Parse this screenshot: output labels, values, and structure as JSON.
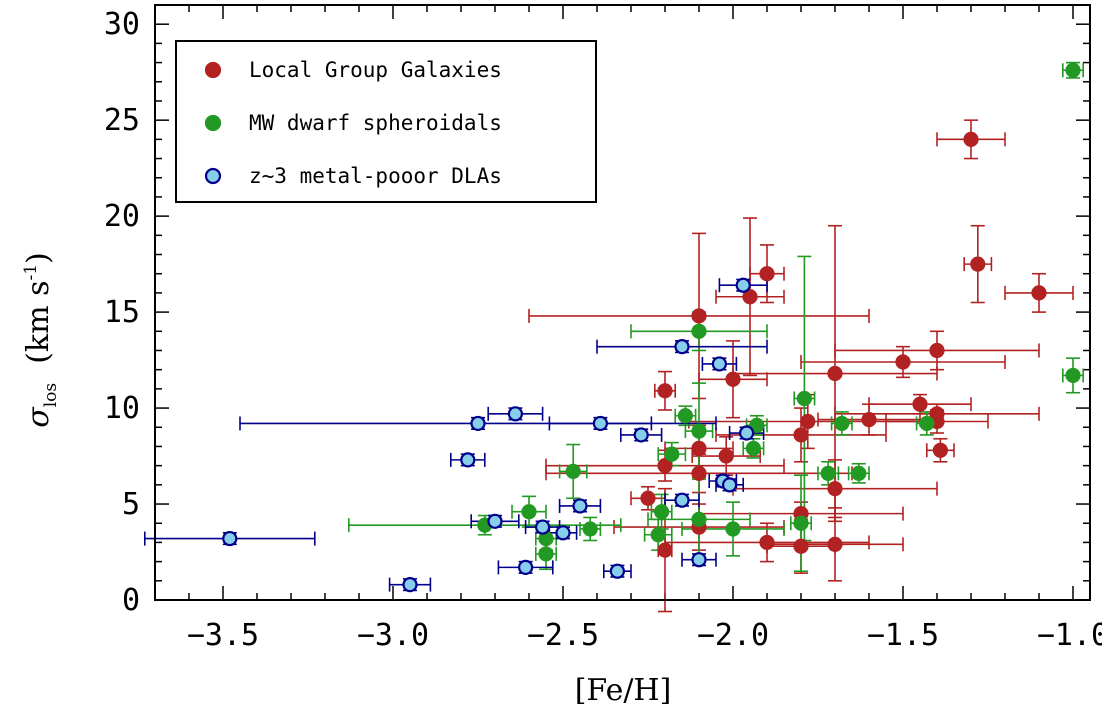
{
  "chart_data": {
    "type": "scatter",
    "xlabel": "[Fe/H]",
    "ylabel_symbol": "σ",
    "ylabel_subscript": "los",
    "ylabel_units": "(km s",
    "ylabel_exponent": "-1",
    "ylabel_close": ")",
    "xlim": [
      -3.7,
      -0.95
    ],
    "ylim": [
      0,
      31
    ],
    "xticks": [
      -3.5,
      -3.0,
      -2.5,
      -2.0,
      -1.5,
      -1.0
    ],
    "xtick_labels": [
      "−3.5",
      "−3.0",
      "−2.5",
      "−2.0",
      "−1.5",
      "−1.0"
    ],
    "yticks": [
      0,
      5,
      10,
      15,
      20,
      25,
      30
    ],
    "ytick_labels": [
      "0",
      "5",
      "10",
      "15",
      "20",
      "25",
      "30"
    ],
    "legend_position": "top-left",
    "series": [
      {
        "name": "Local Group Galaxies",
        "color": "#b22222",
        "edge": "#b22222",
        "points": [
          {
            "x": -1.3,
            "y": 24.0,
            "xerr": 0.1,
            "yerr": 1.0
          },
          {
            "x": -1.28,
            "y": 17.5,
            "xerr": 0.04,
            "yerr": 2.0
          },
          {
            "x": -1.1,
            "y": 16.0,
            "xerr": 0.1,
            "yerr": 1.0
          },
          {
            "x": -1.4,
            "y": 13.0,
            "xerr": 0.3,
            "yerr": 1.0
          },
          {
            "x": -1.5,
            "y": 12.4,
            "xerr": 0.3,
            "yerr": 0.8
          },
          {
            "x": -1.45,
            "y": 10.2,
            "xerr": 0.15,
            "yerr": 0.5
          },
          {
            "x": -1.4,
            "y": 9.7,
            "xerr": 0.3,
            "yerr": 0.5
          },
          {
            "x": -1.4,
            "y": 9.3,
            "xerr": 0.15,
            "yerr": 0.6
          },
          {
            "x": -1.39,
            "y": 7.8,
            "xerr": 0.04,
            "yerr": 0.6
          },
          {
            "x": -1.6,
            "y": 9.4,
            "xerr": 0.15,
            "yerr": 0.8
          },
          {
            "x": -1.7,
            "y": 11.8,
            "xerr": 0.3,
            "yerr": 7.7
          },
          {
            "x": -1.7,
            "y": 5.8,
            "xerr": 0.3,
            "yerr": 1.5
          },
          {
            "x": -1.7,
            "y": 2.9,
            "xerr": 0.2,
            "yerr": 1.9
          },
          {
            "x": -1.8,
            "y": 2.8,
            "xerr": 0.1,
            "yerr": 1.4
          },
          {
            "x": -1.8,
            "y": 4.5,
            "xerr": 0.3,
            "yerr": 0.6
          },
          {
            "x": -1.8,
            "y": 8.6,
            "xerr": 0.25,
            "yerr": 1.4
          },
          {
            "x": -1.78,
            "y": 9.3,
            "xerr": 0.35,
            "yerr": 1.4
          },
          {
            "x": -1.9,
            "y": 17.0,
            "xerr": 0.05,
            "yerr": 1.5
          },
          {
            "x": -1.95,
            "y": 15.8,
            "xerr": 0.1,
            "yerr": 4.1
          },
          {
            "x": -1.9,
            "y": 3.0,
            "xerr": 0.3,
            "yerr": 1.0
          },
          {
            "x": -2.0,
            "y": 11.5,
            "xerr": 0.1,
            "yerr": 2.0
          },
          {
            "x": -2.02,
            "y": 7.5,
            "xerr": 0.1,
            "yerr": 1.0
          },
          {
            "x": -2.1,
            "y": 14.8,
            "xerr": 0.5,
            "yerr": 4.3
          },
          {
            "x": -2.1,
            "y": 7.9,
            "xerr": 0.1,
            "yerr": 1.2
          },
          {
            "x": -2.1,
            "y": 6.6,
            "xerr": 0.45,
            "yerr": 1.0
          },
          {
            "x": -2.1,
            "y": 3.8,
            "xerr": 0.25,
            "yerr": 1.2
          },
          {
            "x": -2.2,
            "y": 10.9,
            "xerr": 0.03,
            "yerr": 1.0
          },
          {
            "x": -2.2,
            "y": 7.0,
            "xerr": 0.35,
            "yerr": 0.8
          },
          {
            "x": -2.2,
            "y": 2.6,
            "xerr": 0.02,
            "yerr": 3.2
          },
          {
            "x": -2.25,
            "y": 5.3,
            "xerr": 0.05,
            "yerr": 0.6
          }
        ]
      },
      {
        "name": "MW dwarf spheroidals",
        "color": "#229922",
        "edge": "#229922",
        "points": [
          {
            "x": -1.0,
            "y": 27.6,
            "xerr": 0.03,
            "yerr": 0.4
          },
          {
            "x": -1.0,
            "y": 11.7,
            "xerr": 0.03,
            "yerr": 0.9
          },
          {
            "x": -1.43,
            "y": 9.2,
            "xerr": 0.03,
            "yerr": 0.6
          },
          {
            "x": -1.63,
            "y": 6.6,
            "xerr": 0.03,
            "yerr": 0.5
          },
          {
            "x": -1.68,
            "y": 9.2,
            "xerr": 0.03,
            "yerr": 0.6
          },
          {
            "x": -1.72,
            "y": 6.6,
            "xerr": 0.03,
            "yerr": 0.6
          },
          {
            "x": -1.79,
            "y": 10.5,
            "xerr": 0.03,
            "yerr": 7.4
          },
          {
            "x": -1.8,
            "y": 4.0,
            "xerr": 0.03,
            "yerr": 2.5
          },
          {
            "x": -1.93,
            "y": 9.1,
            "xerr": 0.03,
            "yerr": 0.5
          },
          {
            "x": -1.94,
            "y": 7.9,
            "xerr": 0.03,
            "yerr": 0.5
          },
          {
            "x": -2.0,
            "y": 3.7,
            "xerr": 0.15,
            "yerr": 1.4
          },
          {
            "x": -2.1,
            "y": 14.0,
            "xerr": 0.2,
            "yerr": 1.0
          },
          {
            "x": -2.1,
            "y": 8.8,
            "xerr": 0.04,
            "yerr": 2.5
          },
          {
            "x": -2.1,
            "y": 4.2,
            "xerr": 0.15,
            "yerr": 2.2
          },
          {
            "x": -2.14,
            "y": 9.6,
            "xerr": 0.03,
            "yerr": 0.5
          },
          {
            "x": -2.18,
            "y": 7.6,
            "xerr": 0.04,
            "yerr": 0.6
          },
          {
            "x": -2.21,
            "y": 4.6,
            "xerr": 0.03,
            "yerr": 0.9
          },
          {
            "x": -2.22,
            "y": 3.4,
            "xerr": 0.04,
            "yerr": 0.8
          },
          {
            "x": -2.42,
            "y": 3.7,
            "xerr": 0.03,
            "yerr": 0.6
          },
          {
            "x": -2.47,
            "y": 6.7,
            "xerr": 0.04,
            "yerr": 1.4
          },
          {
            "x": -2.55,
            "y": 2.4,
            "xerr": 0.03,
            "yerr": 0.8
          },
          {
            "x": -2.55,
            "y": 3.2,
            "xerr": 0.03,
            "yerr": 0.6
          },
          {
            "x": -2.6,
            "y": 4.6,
            "xerr": 0.05,
            "yerr": 0.8
          },
          {
            "x": -2.73,
            "y": 3.9,
            "xerr": 0.4,
            "yerr": 0.5
          }
        ]
      },
      {
        "name": "z~3 metal-pooor DLAs",
        "color": "#87ceeb",
        "edge": "#00008b",
        "points": [
          {
            "x": -1.97,
            "y": 16.4,
            "xerr": 0.07,
            "yerr": 0.3
          },
          {
            "x": -2.15,
            "y": 13.2,
            "xerr": 0.25,
            "yerr": 0.3
          },
          {
            "x": -2.04,
            "y": 12.3,
            "xerr": 0.05,
            "yerr": 0.3
          },
          {
            "x": -2.64,
            "y": 9.7,
            "xerr": 0.08,
            "yerr": 0.3
          },
          {
            "x": -2.39,
            "y": 9.2,
            "xerr": 0.15,
            "yerr": 0.3
          },
          {
            "x": -2.75,
            "y": 9.2,
            "xerr": 0.7,
            "yerr": 0.3
          },
          {
            "x": -1.96,
            "y": 8.7,
            "xerr": 0.05,
            "yerr": 0.3
          },
          {
            "x": -2.27,
            "y": 8.6,
            "xerr": 0.06,
            "yerr": 0.3
          },
          {
            "x": -2.78,
            "y": 7.3,
            "xerr": 0.05,
            "yerr": 0.3
          },
          {
            "x": -2.03,
            "y": 6.2,
            "xerr": 0.04,
            "yerr": 0.3
          },
          {
            "x": -2.01,
            "y": 6.0,
            "xerr": 0.04,
            "yerr": 0.3
          },
          {
            "x": -2.15,
            "y": 5.2,
            "xerr": 0.05,
            "yerr": 0.3
          },
          {
            "x": -2.45,
            "y": 4.9,
            "xerr": 0.06,
            "yerr": 0.3
          },
          {
            "x": -2.7,
            "y": 4.1,
            "xerr": 0.07,
            "yerr": 0.3
          },
          {
            "x": -2.56,
            "y": 3.8,
            "xerr": 0.05,
            "yerr": 0.3
          },
          {
            "x": -2.5,
            "y": 3.5,
            "xerr": 0.04,
            "yerr": 0.3
          },
          {
            "x": -3.48,
            "y": 3.2,
            "xerr": 0.25,
            "yerr": 0.3
          },
          {
            "x": -2.1,
            "y": 2.1,
            "xerr": 0.05,
            "yerr": 0.3
          },
          {
            "x": -2.61,
            "y": 1.7,
            "xerr": 0.08,
            "yerr": 0.3
          },
          {
            "x": -2.34,
            "y": 1.5,
            "xerr": 0.04,
            "yerr": 0.3
          },
          {
            "x": -2.95,
            "y": 0.8,
            "xerr": 0.06,
            "yerr": 0.3
          }
        ]
      }
    ]
  }
}
